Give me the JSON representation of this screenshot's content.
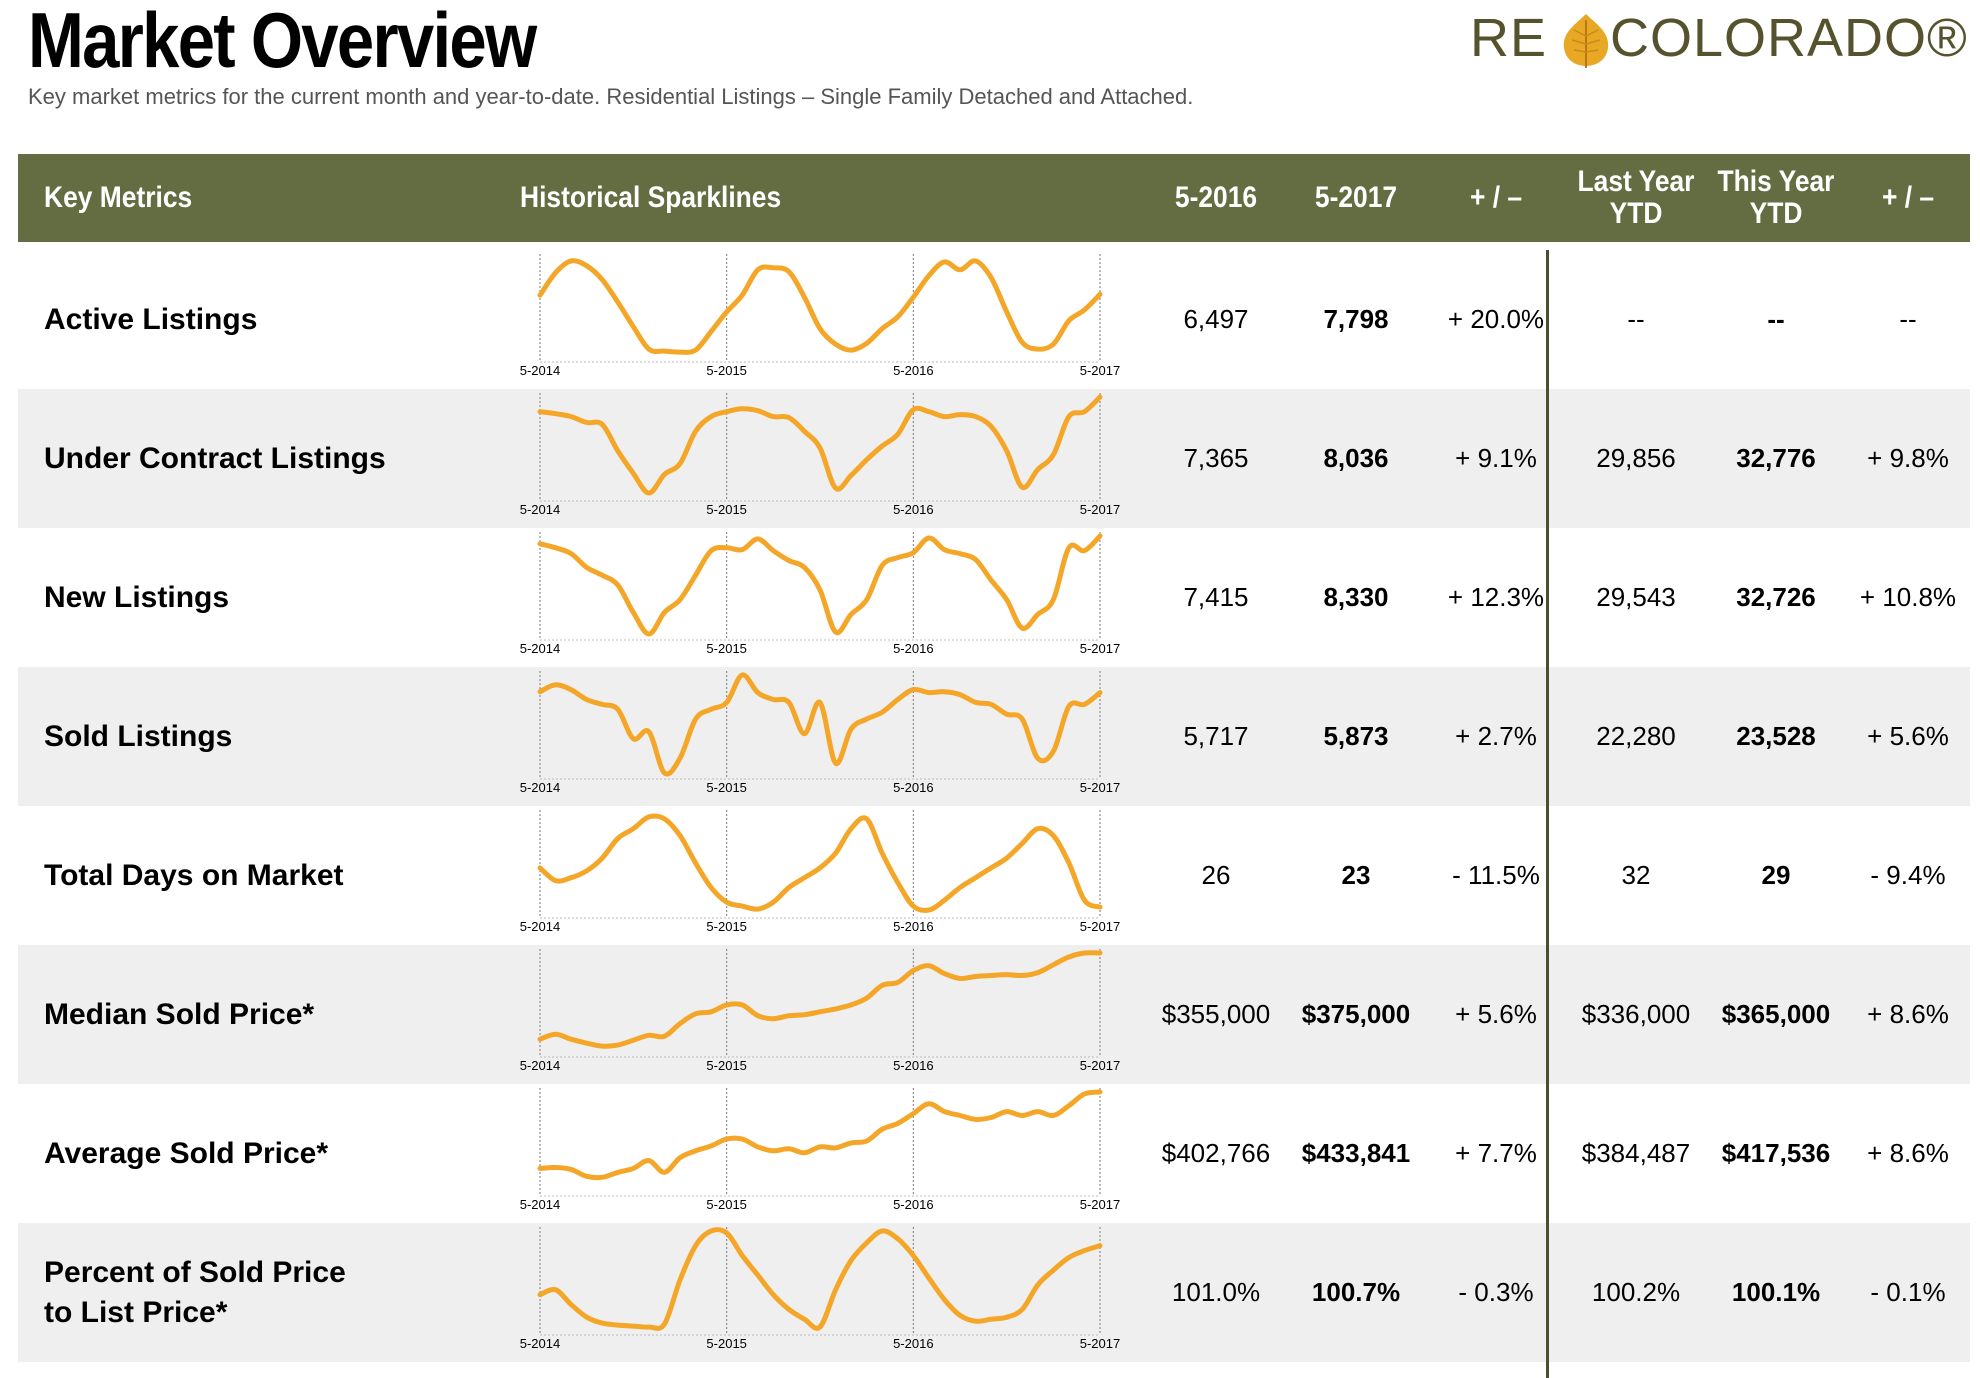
{
  "header": {
    "title": "Market Overview",
    "subtitle": "Key market metrics for the current month and year-to-date. Residential Listings – Single Family Detached and Attached.",
    "logo_left": "RE",
    "logo_right": "COLORADO®"
  },
  "columns": {
    "key_metrics": "Key Metrics",
    "sparklines": "Historical Sparklines",
    "prev": "5-2016",
    "curr": "5-2017",
    "change": "+ / –",
    "last_ytd": "Last Year\nYTD",
    "this_ytd": "This Year\nYTD",
    "ytd_change": "+ / –"
  },
  "colors": {
    "header_bg": "#646d41",
    "sparkline": "#f4a628",
    "row_shade": "#efefef",
    "logo": "#55532e",
    "leaf": "#e8a823"
  },
  "sparkline_ticks": [
    "5-2014",
    "5-2015",
    "5-2016",
    "5-2017"
  ],
  "rows": [
    {
      "label": "Active Listings",
      "prev": "6,497",
      "curr": "7,798",
      "change": "+ 20.0%",
      "last_ytd": "--",
      "this_ytd": "--",
      "ytd_change": "--"
    },
    {
      "label": "Under Contract Listings",
      "prev": "7,365",
      "curr": "8,036",
      "change": "+ 9.1%",
      "last_ytd": "29,856",
      "this_ytd": "32,776",
      "ytd_change": "+ 9.8%"
    },
    {
      "label": "New Listings",
      "prev": "7,415",
      "curr": "8,330",
      "change": "+ 12.3%",
      "last_ytd": "29,543",
      "this_ytd": "32,726",
      "ytd_change": "+ 10.8%"
    },
    {
      "label": "Sold Listings",
      "prev": "5,717",
      "curr": "5,873",
      "change": "+ 2.7%",
      "last_ytd": "22,280",
      "this_ytd": "23,528",
      "ytd_change": "+ 5.6%"
    },
    {
      "label": "Total Days on Market",
      "prev": "26",
      "curr": "23",
      "change": "- 11.5%",
      "last_ytd": "32",
      "this_ytd": "29",
      "ytd_change": "- 9.4%"
    },
    {
      "label": "Median Sold Price*",
      "prev": "$355,000",
      "curr": "$375,000",
      "change": "+ 5.6%",
      "last_ytd": "$336,000",
      "this_ytd": "$365,000",
      "ytd_change": "+ 8.6%"
    },
    {
      "label": "Average Sold Price*",
      "prev": "$402,766",
      "curr": "$433,841",
      "change": "+ 7.7%",
      "last_ytd": "$384,487",
      "this_ytd": "$417,536",
      "ytd_change": "+ 8.6%"
    },
    {
      "label": "Percent of Sold Price\nto List Price*",
      "prev": "101.0%",
      "curr": "100.7%",
      "change": "- 0.3%",
      "last_ytd": "100.2%",
      "this_ytd": "100.1%",
      "ytd_change": "- 0.1%"
    }
  ],
  "chart_data": {
    "type": "line",
    "x": [
      "5-2014",
      "6-2014",
      "7-2014",
      "8-2014",
      "9-2014",
      "10-2014",
      "11-2014",
      "12-2014",
      "1-2015",
      "2-2015",
      "3-2015",
      "4-2015",
      "5-2015",
      "6-2015",
      "7-2015",
      "8-2015",
      "9-2015",
      "10-2015",
      "11-2015",
      "12-2015",
      "1-2016",
      "2-2016",
      "3-2016",
      "4-2016",
      "5-2016",
      "6-2016",
      "7-2016",
      "8-2016",
      "9-2016",
      "10-2016",
      "11-2016",
      "12-2016",
      "1-2017",
      "2-2017",
      "3-2017",
      "4-2017",
      "5-2017"
    ],
    "series": [
      {
        "name": "Active Listings",
        "values": [
          0.62,
          0.85,
          0.97,
          0.92,
          0.78,
          0.55,
          0.3,
          0.07,
          0.05,
          0.04,
          0.06,
          0.25,
          0.45,
          0.62,
          0.88,
          0.9,
          0.86,
          0.6,
          0.28,
          0.12,
          0.06,
          0.13,
          0.28,
          0.4,
          0.6,
          0.82,
          0.96,
          0.88,
          0.97,
          0.8,
          0.45,
          0.14,
          0.07,
          0.12,
          0.36,
          0.47,
          0.63
        ]
      },
      {
        "name": "Under Contract Listings",
        "values": [
          0.85,
          0.83,
          0.8,
          0.74,
          0.72,
          0.45,
          0.22,
          0.02,
          0.21,
          0.32,
          0.65,
          0.8,
          0.85,
          0.88,
          0.86,
          0.8,
          0.79,
          0.65,
          0.48,
          0.07,
          0.2,
          0.36,
          0.5,
          0.62,
          0.87,
          0.85,
          0.8,
          0.82,
          0.8,
          0.7,
          0.45,
          0.08,
          0.26,
          0.41,
          0.8,
          0.85,
          1.0
        ]
      },
      {
        "name": "New Listings",
        "values": [
          0.92,
          0.88,
          0.82,
          0.68,
          0.6,
          0.5,
          0.22,
          0.0,
          0.22,
          0.35,
          0.6,
          0.85,
          0.88,
          0.86,
          0.97,
          0.85,
          0.75,
          0.68,
          0.45,
          0.02,
          0.2,
          0.35,
          0.7,
          0.78,
          0.83,
          0.98,
          0.86,
          0.82,
          0.76,
          0.55,
          0.35,
          0.06,
          0.2,
          0.35,
          0.88,
          0.85,
          1.0
        ]
      },
      {
        "name": "Sold Listings",
        "values": [
          0.83,
          0.9,
          0.85,
          0.75,
          0.7,
          0.65,
          0.35,
          0.42,
          0.0,
          0.15,
          0.55,
          0.65,
          0.72,
          1.0,
          0.82,
          0.75,
          0.72,
          0.4,
          0.72,
          0.1,
          0.45,
          0.55,
          0.62,
          0.75,
          0.85,
          0.82,
          0.83,
          0.8,
          0.72,
          0.7,
          0.6,
          0.55,
          0.15,
          0.22,
          0.68,
          0.7,
          0.82
        ]
      },
      {
        "name": "Total Days on Market",
        "values": [
          0.45,
          0.32,
          0.35,
          0.42,
          0.55,
          0.75,
          0.85,
          0.97,
          0.95,
          0.78,
          0.5,
          0.25,
          0.1,
          0.06,
          0.03,
          0.1,
          0.25,
          0.35,
          0.45,
          0.6,
          0.85,
          0.95,
          0.6,
          0.3,
          0.06,
          0.02,
          0.12,
          0.25,
          0.35,
          0.45,
          0.55,
          0.7,
          0.85,
          0.78,
          0.5,
          0.12,
          0.05
        ]
      },
      {
        "name": "Median Sold Price*",
        "values": [
          0.12,
          0.17,
          0.12,
          0.08,
          0.05,
          0.06,
          0.11,
          0.16,
          0.15,
          0.28,
          0.38,
          0.4,
          0.47,
          0.47,
          0.36,
          0.33,
          0.36,
          0.37,
          0.4,
          0.43,
          0.47,
          0.54,
          0.67,
          0.7,
          0.82,
          0.87,
          0.79,
          0.74,
          0.76,
          0.77,
          0.78,
          0.77,
          0.8,
          0.88,
          0.96,
          1.0,
          1.0
        ]
      },
      {
        "name": "Average Sold Price*",
        "values": [
          0.22,
          0.23,
          0.21,
          0.14,
          0.13,
          0.18,
          0.22,
          0.3,
          0.18,
          0.33,
          0.4,
          0.45,
          0.52,
          0.52,
          0.44,
          0.4,
          0.42,
          0.38,
          0.44,
          0.43,
          0.48,
          0.5,
          0.62,
          0.68,
          0.78,
          0.88,
          0.8,
          0.76,
          0.72,
          0.74,
          0.8,
          0.76,
          0.8,
          0.76,
          0.86,
          0.98,
          1.0
        ]
      },
      {
        "name": "Percent of Sold Price to List Price*",
        "values": [
          0.35,
          0.4,
          0.25,
          0.12,
          0.06,
          0.04,
          0.03,
          0.02,
          0.05,
          0.5,
          0.85,
          1.0,
          0.98,
          0.75,
          0.55,
          0.35,
          0.2,
          0.1,
          0.02,
          0.4,
          0.7,
          0.88,
          1.0,
          0.92,
          0.75,
          0.52,
          0.3,
          0.14,
          0.08,
          0.1,
          0.12,
          0.2,
          0.45,
          0.6,
          0.73,
          0.8,
          0.85
        ]
      }
    ]
  }
}
